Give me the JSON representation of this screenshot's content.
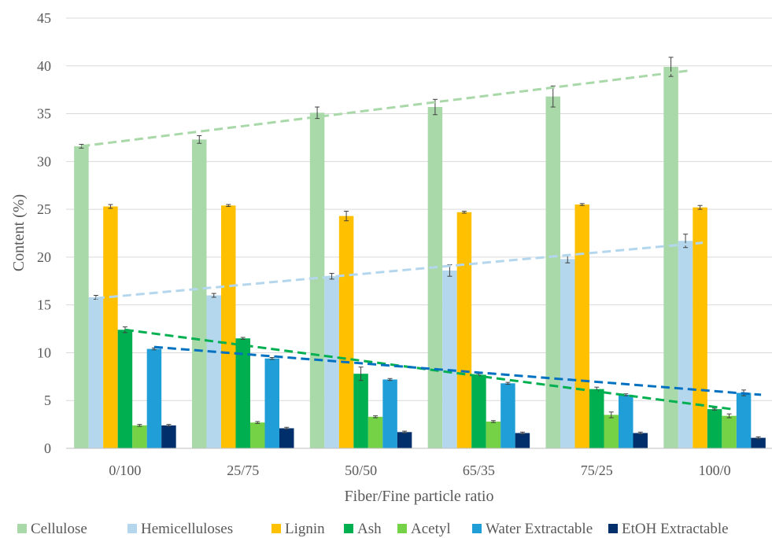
{
  "chart_data": {
    "type": "bar",
    "title": "",
    "xlabel": "Fiber/Fine particle ratio",
    "ylabel": "Content (%)",
    "ylim": [
      0,
      45
    ],
    "yticks": [
      "0",
      "5",
      "10",
      "15",
      "20",
      "25",
      "30",
      "35",
      "40",
      "45"
    ],
    "grid": true,
    "legend_position": "bottom",
    "categories": [
      "0/100",
      "25/75",
      "50/50",
      "65/35",
      "75/25",
      "100/0"
    ],
    "series": [
      {
        "name": "Cellulose",
        "color": "#a9d8a9",
        "values": [
          31.6,
          32.3,
          35.1,
          35.7,
          36.8,
          39.9
        ],
        "errors": [
          0.2,
          0.4,
          0.6,
          0.8,
          1.1,
          1.0
        ]
      },
      {
        "name": "Hemicelluloses",
        "color": "#b4d7ee",
        "values": [
          15.8,
          16.0,
          18.0,
          18.6,
          19.8,
          21.7
        ],
        "errors": [
          0.2,
          0.2,
          0.3,
          0.6,
          0.4,
          0.7
        ]
      },
      {
        "name": "Lignin",
        "color": "#ffc000",
        "values": [
          25.3,
          25.4,
          24.3,
          24.7,
          25.5,
          25.2
        ],
        "errors": [
          0.2,
          0.1,
          0.5,
          0.1,
          0.1,
          0.2
        ]
      },
      {
        "name": "Ash",
        "color": "#00b050",
        "values": [
          12.4,
          11.5,
          7.8,
          7.7,
          6.2,
          4.1
        ],
        "errors": [
          0.3,
          0.1,
          0.7,
          0.1,
          0.2,
          0.1
        ]
      },
      {
        "name": "Acetyl",
        "color": "#75d145",
        "values": [
          2.4,
          2.7,
          3.3,
          2.8,
          3.5,
          3.4
        ],
        "errors": [
          0.1,
          0.1,
          0.1,
          0.1,
          0.3,
          0.2
        ]
      },
      {
        "name": "Water Extractable",
        "color": "#1f9ed8",
        "values": [
          10.4,
          9.4,
          7.2,
          6.8,
          5.6,
          5.8
        ],
        "errors": [
          0.1,
          0.1,
          0.1,
          0.1,
          0.1,
          0.3
        ]
      },
      {
        "name": "EtOH Extractable",
        "color": "#002f6c",
        "values": [
          2.4,
          2.1,
          1.7,
          1.6,
          1.6,
          1.1
        ],
        "errors": [
          0.1,
          0.1,
          0.1,
          0.1,
          0.1,
          0.1
        ]
      }
    ],
    "trendlines": [
      {
        "series": "Cellulose",
        "color": "#a9d8a9",
        "start": 31.6,
        "end": 39.5
      },
      {
        "series": "Hemicelluloses",
        "color": "#b4d7ee",
        "start": 15.7,
        "end": 21.5
      },
      {
        "series": "Ash",
        "color": "#00b050",
        "start": 12.4,
        "end": 4.1
      },
      {
        "series": "Water Extractable",
        "color": "#0070c0",
        "start": 10.6,
        "end": 5.6
      }
    ]
  }
}
